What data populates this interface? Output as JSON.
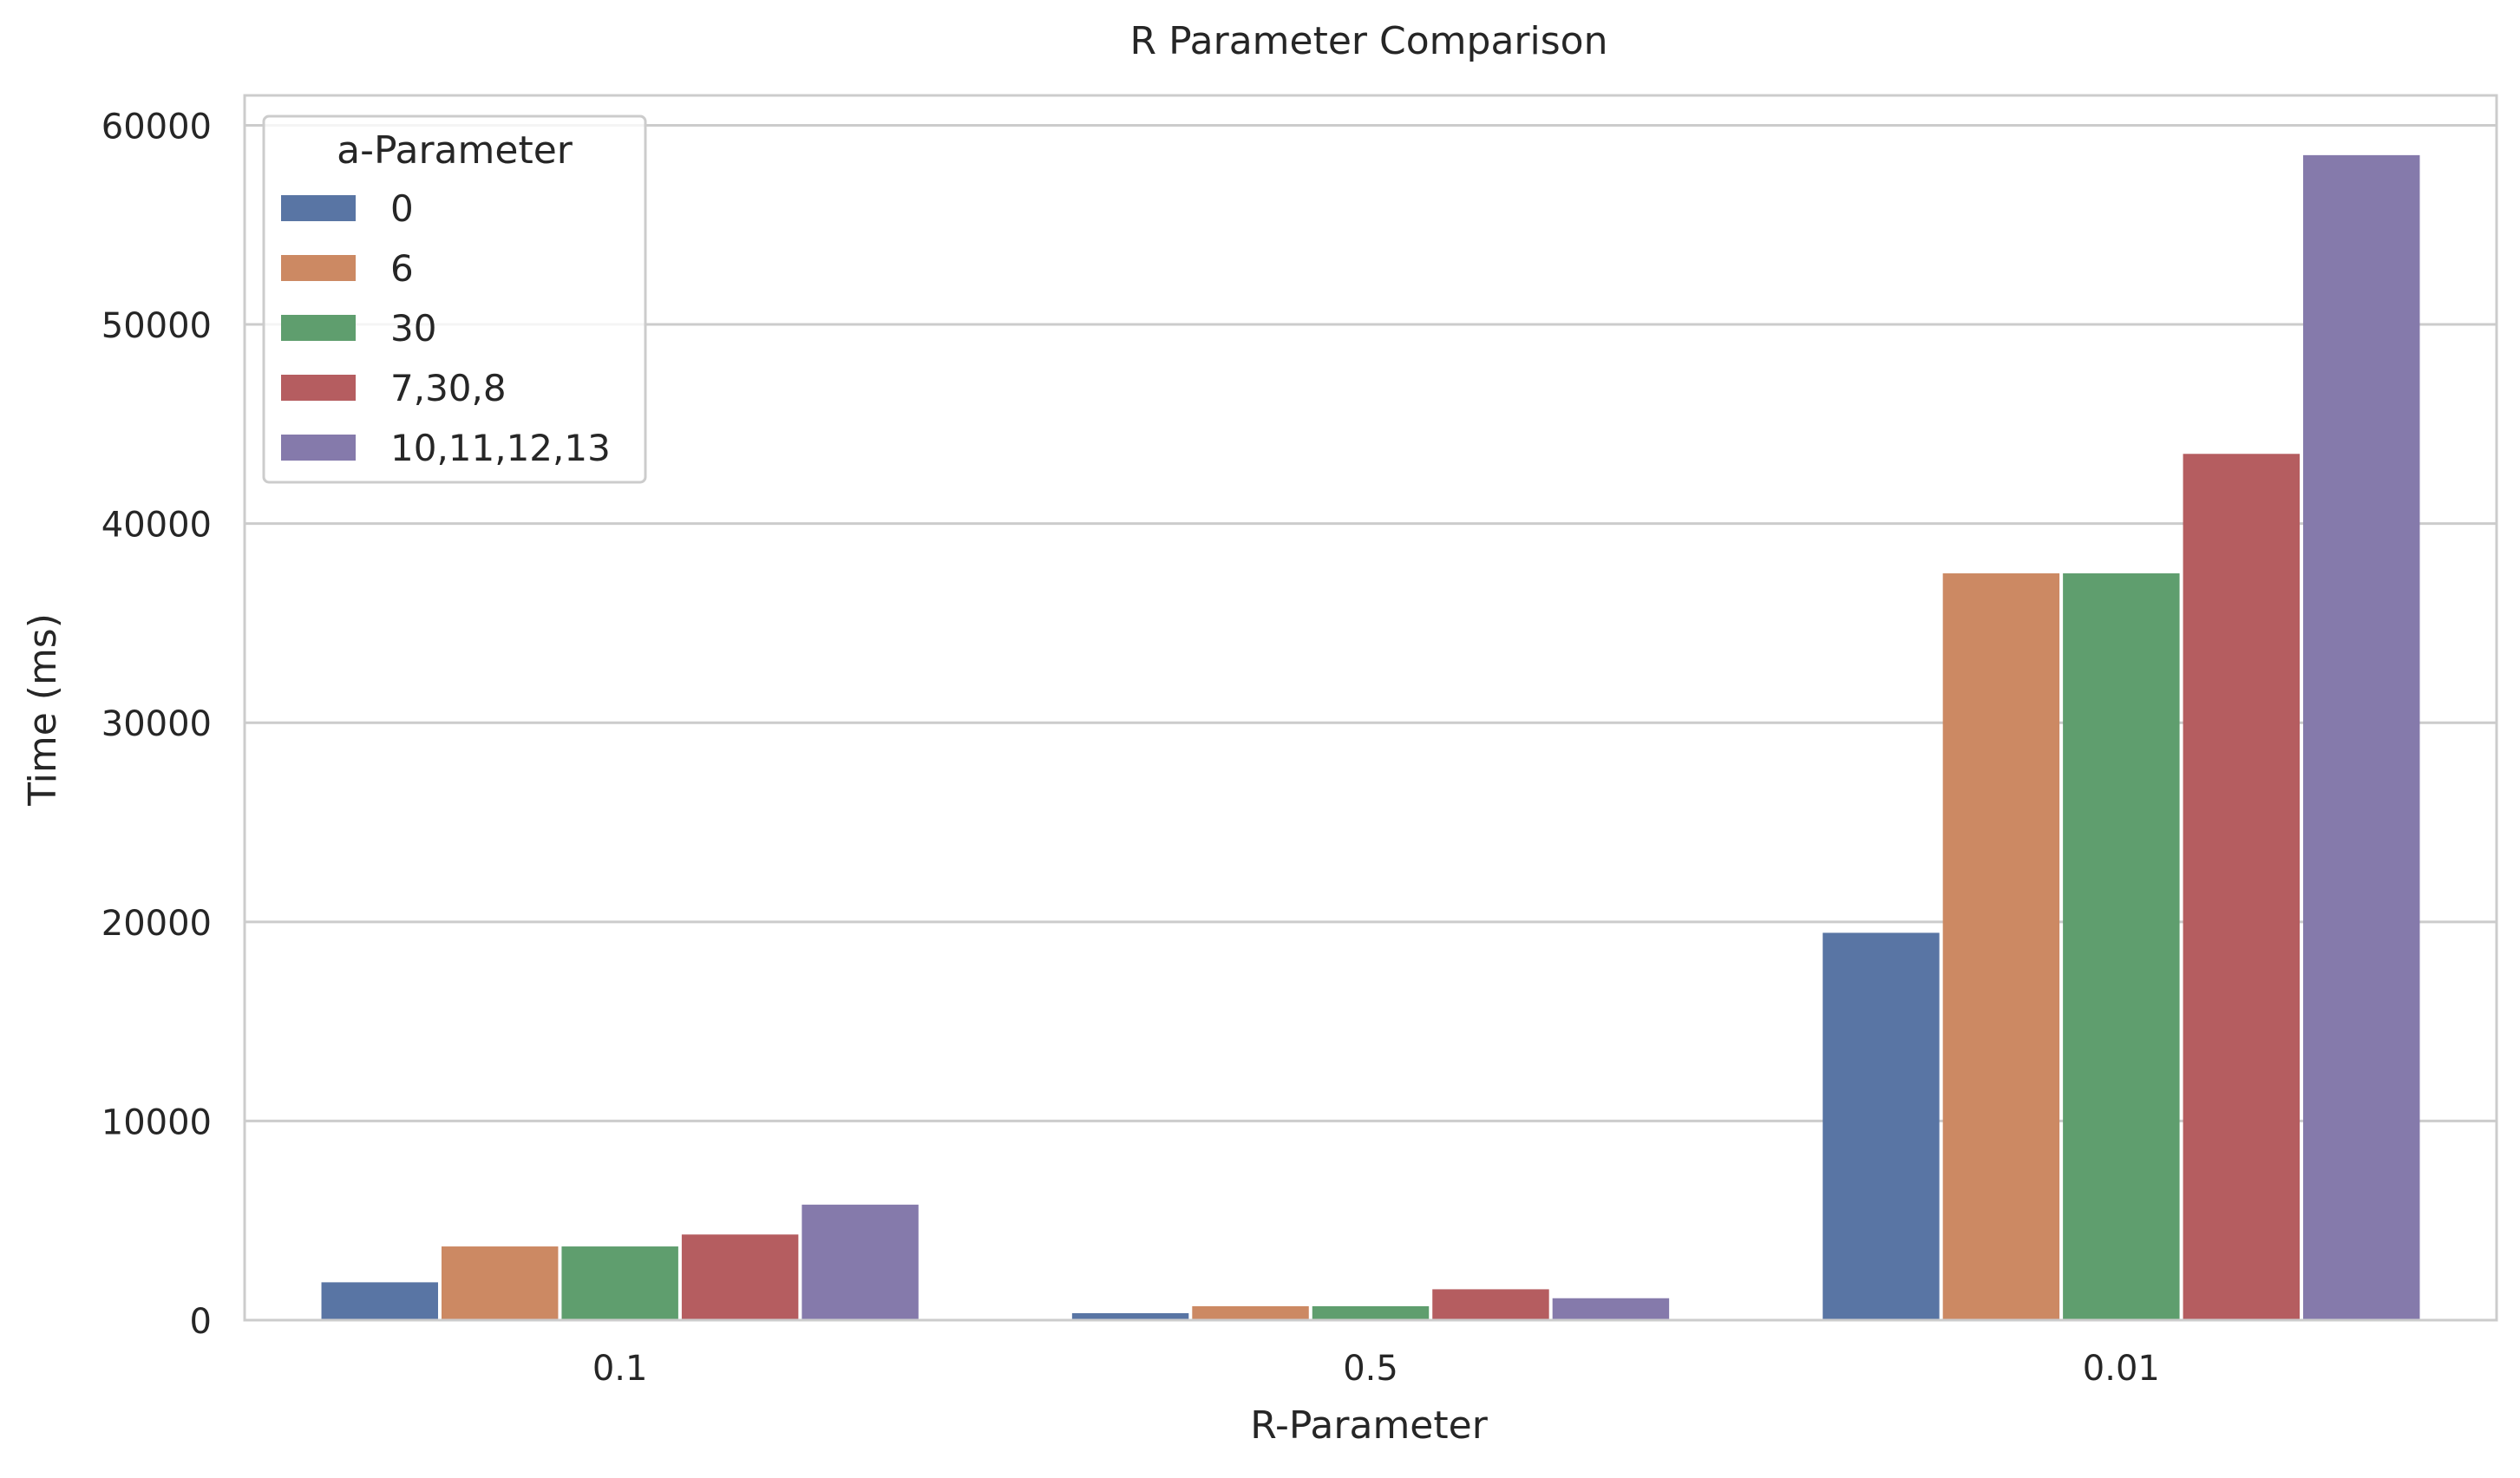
{
  "chart_data": {
    "type": "bar",
    "title": "R Parameter Comparison",
    "xlabel": "R-Parameter",
    "ylabel": "Time (ms)",
    "categories": [
      "0.1",
      "0.5",
      "0.01"
    ],
    "ylim": [
      0,
      61500
    ],
    "yticks": [
      0,
      10000,
      20000,
      30000,
      40000,
      50000,
      60000
    ],
    "grid": true,
    "legend": {
      "title": "a-Parameter",
      "placement": "top-left"
    },
    "series": [
      {
        "name": "0",
        "color": "#5975a4",
        "values": [
          1900,
          350,
          19450
        ]
      },
      {
        "name": "6",
        "color": "#cc8963",
        "values": [
          3700,
          700,
          37500
        ]
      },
      {
        "name": "30",
        "color": "#5f9e6e",
        "values": [
          3700,
          700,
          37500
        ]
      },
      {
        "name": "7,30,8",
        "color": "#b55d60",
        "values": [
          4300,
          1550,
          43500
        ]
      },
      {
        "name": "10,11,12,13",
        "color": "#857aab",
        "values": [
          5800,
          1100,
          58500
        ]
      }
    ]
  }
}
